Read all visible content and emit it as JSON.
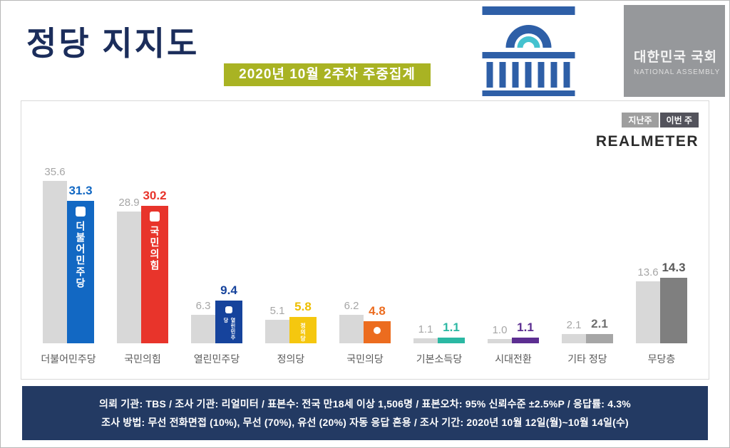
{
  "header": {
    "title": "정당 지지도",
    "badge": "2020년 10월 2주차 주중집계",
    "assembly_logo_icon": "national-assembly-building-icon",
    "assembly_name": "대한민국 국회",
    "assembly_name_en": "NATIONAL ASSEMBLY"
  },
  "legend": {
    "last_week_label": "지난주",
    "this_week_label": "이번 주",
    "brand": "REALMETER"
  },
  "chart_data": {
    "type": "bar",
    "title": "정당 지지도",
    "subtitle": "2020년 10월 2주차 주중집계",
    "categories": [
      "더불어민주당",
      "국민의힘",
      "열린민주당",
      "정의당",
      "국민의당",
      "기본소득당",
      "시대전환",
      "기타 정당",
      "무당층"
    ],
    "series": [
      {
        "name": "지난주",
        "values": [
          35.6,
          28.9,
          6.3,
          5.1,
          6.2,
          1.1,
          1.0,
          2.1,
          13.6
        ]
      },
      {
        "name": "이번 주",
        "values": [
          31.3,
          30.2,
          9.4,
          5.8,
          4.8,
          1.1,
          1.1,
          2.1,
          14.3
        ]
      }
    ],
    "colors": {
      "last_week": "#d8d8d8",
      "this_week": [
        "#1268c3",
        "#e8342b",
        "#16439c",
        "#f5c70f",
        "#ec6c1f",
        "#2bb8a3",
        "#5c2e91",
        "#a6a6a6",
        "#7f7f7f"
      ]
    },
    "value_colors": [
      "#1268c3",
      "#e8342b",
      "#16439c",
      "#eebe00",
      "#ec6c1f",
      "#2bb8a3",
      "#5c2e91",
      "#6f6f6f",
      "#595959"
    ],
    "in_bar_labels": [
      "더불어민주당",
      "국민의힘",
      "열린민주당",
      "정의당",
      "",
      "",
      "",
      "",
      ""
    ],
    "ylim": [
      0,
      40
    ],
    "grid": false,
    "legend_position": "top-right"
  },
  "footer": {
    "line1": "의뢰 기관: TBS / 조사 기관: 리얼미터 / 표본수: 전국 만18세 이상 1,506명 / 표본오차: 95% 신뢰수준 ±2.5%P / 응답률: 4.3%",
    "line2": "조사 방법: 무선 전화면접 (10%), 무선 (70%), 유선 (20%) 자동 응답 혼용 / 조사 기간: 2020년 10월 12일(월)~10월 14일(수)"
  }
}
